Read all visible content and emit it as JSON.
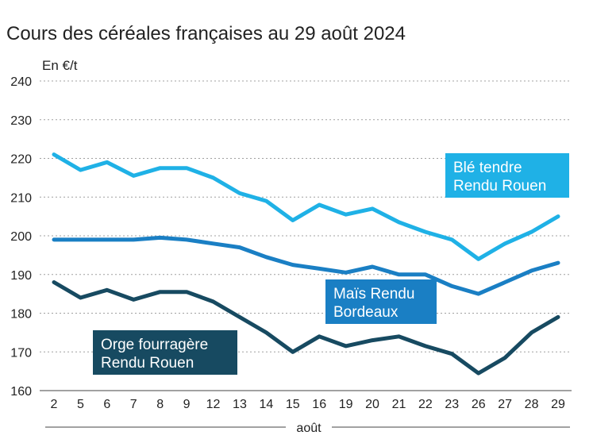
{
  "chart_data": {
    "type": "line",
    "title": "Cours des céréales françaises au 29 août 2024",
    "ylabel": "En €/t",
    "xlabel": "août",
    "ylim": [
      160,
      240
    ],
    "yticks": [
      160,
      170,
      180,
      190,
      200,
      210,
      220,
      230,
      240
    ],
    "categories": [
      "2",
      "5",
      "6",
      "7",
      "8",
      "9",
      "12",
      "13",
      "14",
      "15",
      "16",
      "19",
      "20",
      "21",
      "22",
      "23",
      "26",
      "27",
      "28",
      "29"
    ],
    "grid": true,
    "series": [
      {
        "name": "Blé tendre Rendu Rouen",
        "label_lines": [
          "Blé tendre",
          "Rendu Rouen"
        ],
        "color": "#1fb1e6",
        "values": [
          221,
          217,
          219,
          215.5,
          217.5,
          217.5,
          215,
          211,
          209,
          204,
          208,
          205.5,
          207,
          203.5,
          201,
          199,
          194,
          198,
          201,
          205
        ]
      },
      {
        "name": "Maïs Rendu Bordeaux",
        "label_lines": [
          "Maïs Rendu",
          "Bordeaux"
        ],
        "color": "#1a7fc4",
        "values": [
          199,
          199,
          199,
          199,
          199.5,
          199,
          198,
          197,
          194.5,
          192.5,
          191.5,
          190.5,
          192,
          190,
          190,
          187,
          185,
          188,
          191,
          193
        ]
      },
      {
        "name": "Orge fourragère Rendu Rouen",
        "label_lines": [
          "Orge fourragère",
          "Rendu Rouen"
        ],
        "color": "#174a61",
        "values": [
          188,
          184,
          186,
          183.5,
          185.5,
          185.5,
          183,
          179,
          175,
          170,
          174,
          171.5,
          173,
          174,
          171.5,
          169.5,
          164.5,
          168.5,
          175,
          179
        ]
      }
    ]
  }
}
